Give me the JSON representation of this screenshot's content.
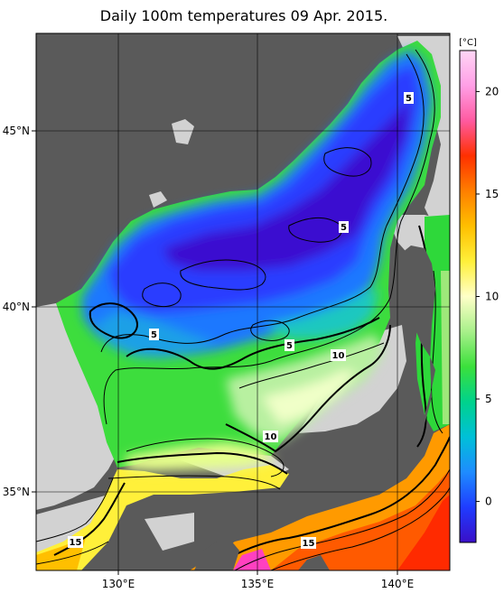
{
  "title": "Daily 100m temperatures 09 Apr. 2015.",
  "colorbar": {
    "unit": "[°C]",
    "min": -2,
    "max": 22,
    "ticks": [
      "0",
      "5",
      "10",
      "15",
      "20"
    ],
    "stops": [
      "#3a0fc8",
      "#1f3cff",
      "#1e8cff",
      "#00c0d8",
      "#00d28c",
      "#3be03b",
      "#a8f08a",
      "#ffffc8",
      "#fff03a",
      "#ffbf00",
      "#ff7f00",
      "#ff3000",
      "#ff5aa0",
      "#ff9fe6",
      "#ffd6f5"
    ]
  },
  "axes": {
    "lon_ticks": [
      "130°E",
      "135°E",
      "140°E"
    ],
    "lat_ticks": [
      "45°N",
      "40°N",
      "35°N"
    ]
  },
  "contour_labels": [
    "5",
    "5",
    "5",
    "5",
    "10",
    "10",
    "15",
    "15"
  ],
  "colors": {
    "land": "#5a5a5a",
    "no_data": "#d2d2d2",
    "gridline": "#000000"
  }
}
